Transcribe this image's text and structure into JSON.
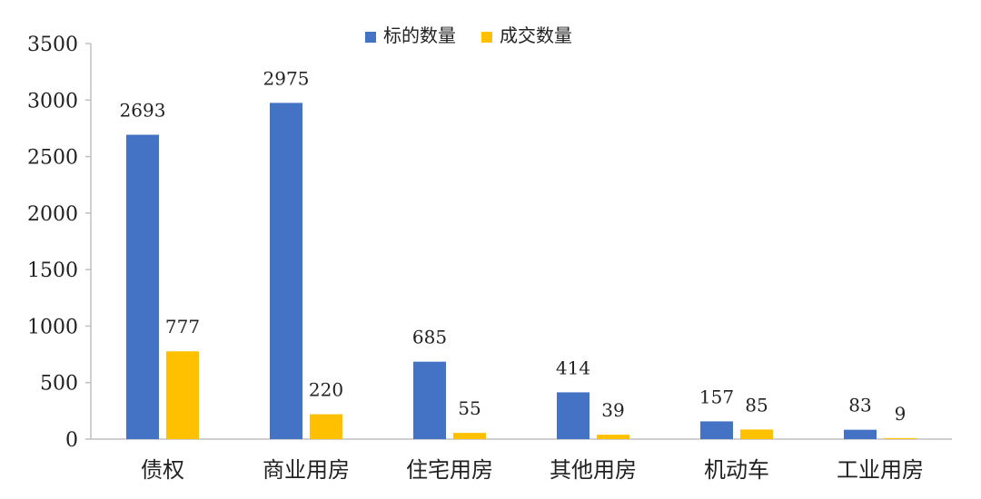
{
  "chart_data": {
    "type": "bar",
    "categories": [
      "债权",
      "商业用房",
      "住宅用房",
      "其他用房",
      "机动车",
      "工业用房"
    ],
    "series": [
      {
        "name": "标的数量",
        "color": "#4472C4",
        "values": [
          2693,
          2975,
          685,
          414,
          157,
          83
        ]
      },
      {
        "name": "成交数量",
        "color": "#FFC000",
        "values": [
          777,
          220,
          55,
          39,
          85,
          9
        ]
      }
    ],
    "ylim": [
      0,
      3500
    ],
    "yticks": [
      0,
      500,
      1000,
      1500,
      2000,
      2500,
      3000,
      3500
    ],
    "legend_position": "top-center",
    "grid": false
  }
}
